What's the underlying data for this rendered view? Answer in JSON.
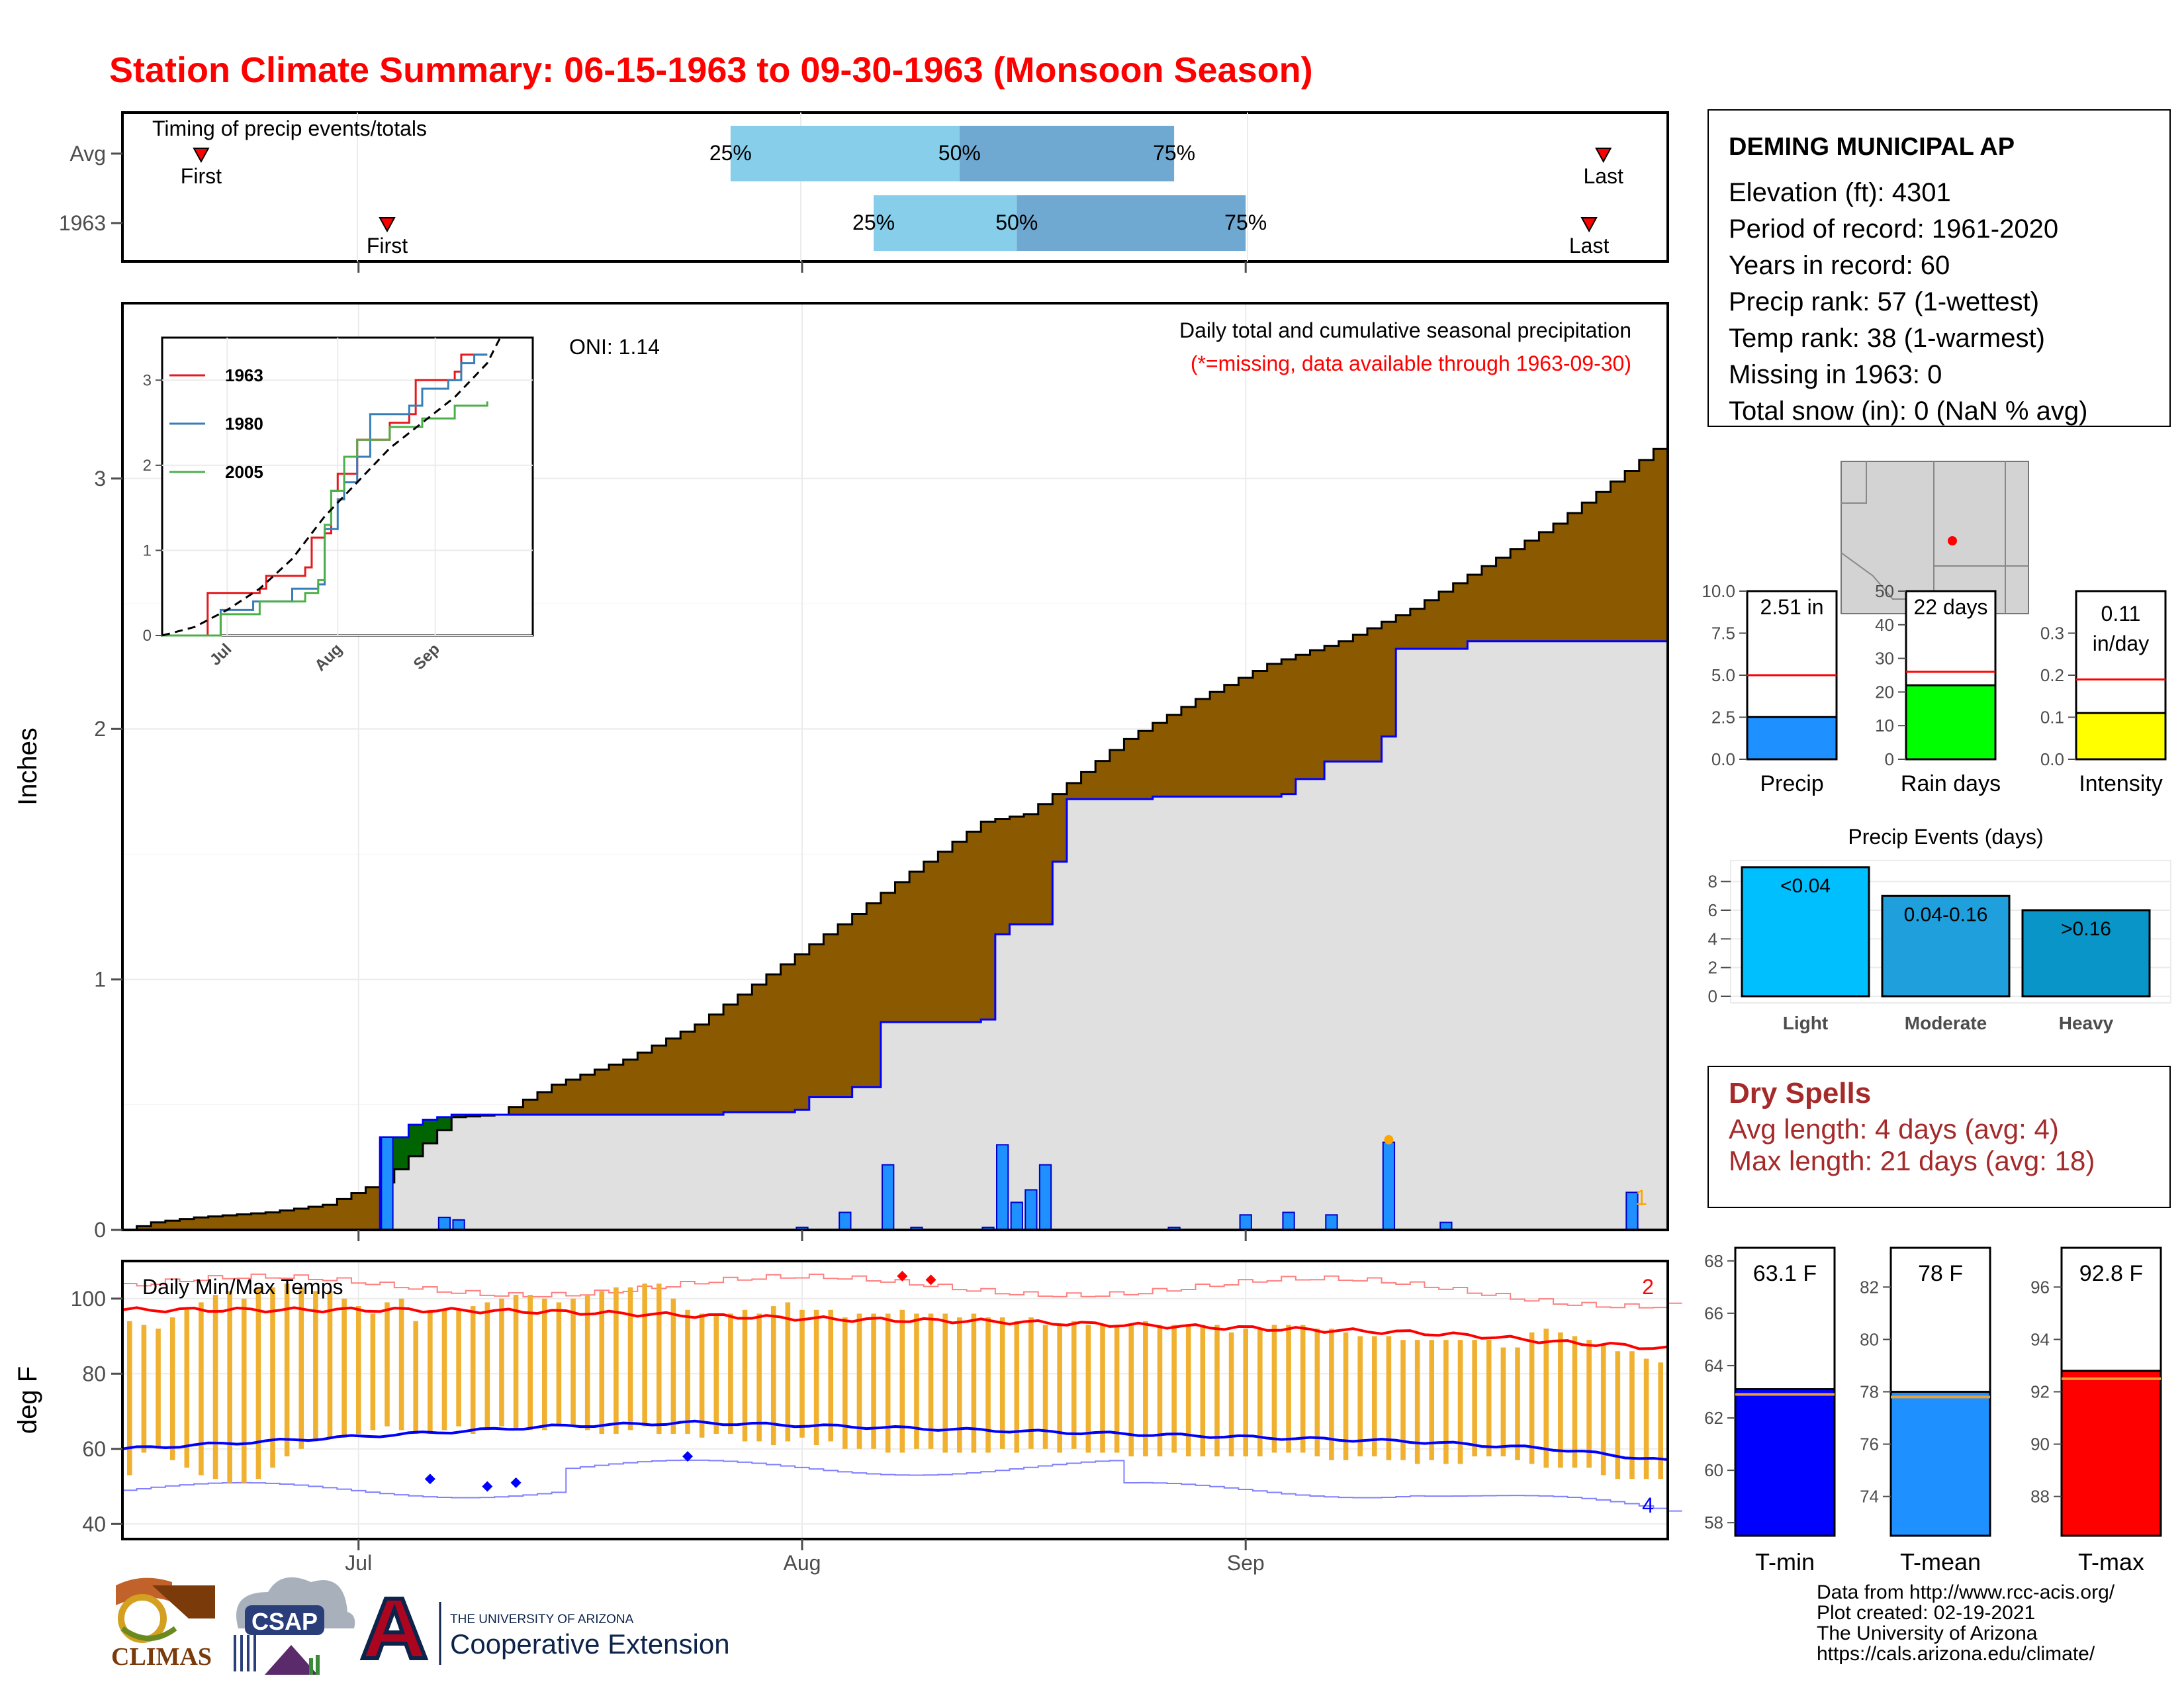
{
  "page": {
    "title": "Station Climate Summary: 06-15-1963 to 09-30-1963 (Monsoon Season)"
  },
  "station": {
    "name": "DEMING MUNICIPAL AP",
    "lines": [
      "Elevation (ft): 4301",
      "Period of record: 1961-2020",
      "Years in record: 60",
      "Precip rank: 57 (1-wettest)",
      "Temp rank: 38 (1-warmest)",
      "Missing in 1963: 0",
      "Total snow (in): 0 (NaN % avg)"
    ]
  },
  "timing": {
    "label": "Timing of precip events/totals",
    "rows": [
      "Avg",
      "1963"
    ],
    "first": "First",
    "last": "Last",
    "p25": "25%",
    "p50": "50%",
    "p75": "75%"
  },
  "precip_panel": {
    "note": "Daily total and cumulative seasonal precipitation",
    "missing_note": "(*=missing, data available through 1963-09-30)",
    "oni": "ONI: 1.14",
    "ylabel": "Inches",
    "corner": "1",
    "yticks": [
      "0",
      "1",
      "2",
      "3"
    ]
  },
  "inset": {
    "legend": [
      "1963",
      "1980",
      "2005"
    ],
    "yticks": [
      "0",
      "1",
      "2",
      "3"
    ],
    "xticks": [
      "Jul",
      "Aug",
      "Sep"
    ]
  },
  "temp_panel": {
    "label": "Daily Min/Max Temps",
    "ylabel": "deg F",
    "corner_top": "2",
    "corner_bottom": "4",
    "yticks": [
      "40",
      "60",
      "80",
      "100"
    ],
    "xticks": [
      "Jul",
      "Aug",
      "Sep"
    ]
  },
  "mini_bars": {
    "precip": {
      "label": "Precip",
      "value_text": "2.51 in",
      "yticks": [
        "0.0",
        "2.5",
        "5.0",
        "7.5",
        "10.0"
      ]
    },
    "raindays": {
      "label": "Rain days",
      "value_text": "22 days",
      "yticks": [
        "0",
        "10",
        "20",
        "30",
        "40",
        "50"
      ]
    },
    "intensity": {
      "label": "Intensity",
      "value_text_1": "0.11",
      "value_text_2": "in/day",
      "yticks": [
        "0.0",
        "0.1",
        "0.2",
        "0.3"
      ]
    }
  },
  "events": {
    "title": "Precip Events (days)",
    "yticks": [
      "0",
      "2",
      "4",
      "6",
      "8"
    ]
  },
  "dry_spells": {
    "title": "Dry Spells",
    "avg": "Avg length: 4 days (avg: 4)",
    "max": "Max length: 21 days (avg: 18)"
  },
  "temp_bars": {
    "tmin": {
      "label": "T-min",
      "value_text": "63.1 F",
      "yticks": [
        "58",
        "60",
        "62",
        "64",
        "66",
        "68"
      ]
    },
    "tmean": {
      "label": "T-mean",
      "value_text": "78 F",
      "yticks": [
        "74",
        "76",
        "78",
        "80",
        "82"
      ]
    },
    "tmax": {
      "label": "T-max",
      "value_text": "92.8 F",
      "yticks": [
        "88",
        "90",
        "92",
        "94",
        "96"
      ]
    }
  },
  "credits": [
    "Data from http://www.rcc-acis.org/",
    "Plot created: 02-19-2021",
    "The University of Arizona",
    "https://cals.arizona.edu/climate/"
  ],
  "logos": {
    "climas": "CLIMAS",
    "csap": "CSAP",
    "ua_small": "THE UNIVERSITY OF ARIZONA",
    "ua_big": "Cooperative Extension"
  },
  "colors": {
    "title": "#ff0000",
    "above_normal": "#006400",
    "below_normal": "#8b5a00",
    "observed_fill": "#e0e0e0",
    "daily_bar": "#1e90ff",
    "tmax_line": "#ff0000",
    "tmin_line": "#0000ff",
    "temp_bar": "#f0b030",
    "precip_bar": "#1e90ff",
    "raindays_bar": "#00ff00",
    "intensity_bar": "#ffff00",
    "tmin_bar": "#0000ff",
    "tmean_bar": "#1e90ff",
    "tmax_bar": "#ff0000",
    "dry_text": "#a52a2a"
  },
  "chart_data": [
    {
      "type": "bar",
      "name": "precip-timing",
      "x_range": [
        "1963-06-15",
        "1963-09-30"
      ],
      "series": [
        {
          "name": "Avg",
          "first": "1963-06-20",
          "p25": "1963-07-27",
          "p50": "1963-08-12",
          "p75": "1963-08-27",
          "last": "1963-09-26"
        },
        {
          "name": "1963",
          "first": "1963-07-03",
          "p25": "1963-08-06",
          "p50": "1963-08-16",
          "p75": "1963-09-01",
          "last": "1963-09-25"
        }
      ]
    },
    {
      "type": "area",
      "name": "cumulative-precip",
      "x_range": [
        "1963-06-15",
        "1963-09-30"
      ],
      "ylim": [
        0,
        3.7
      ],
      "avg_cumulative": [
        [
          0,
          0
        ],
        [
          2,
          0.03
        ],
        [
          5,
          0.05
        ],
        [
          10,
          0.07
        ],
        [
          14,
          0.1
        ],
        [
          17,
          0.17
        ],
        [
          18,
          0.19
        ],
        [
          23,
          0.45
        ],
        [
          26,
          0.46
        ],
        [
          30,
          0.58
        ],
        [
          35,
          0.68
        ],
        [
          40,
          0.82
        ],
        [
          45,
          1.02
        ],
        [
          50,
          1.22
        ],
        [
          55,
          1.43
        ],
        [
          60,
          1.63
        ],
        [
          63,
          1.66
        ],
        [
          65,
          1.74
        ],
        [
          70,
          1.96
        ],
        [
          75,
          2.12
        ],
        [
          80,
          2.26
        ],
        [
          85,
          2.35
        ],
        [
          90,
          2.48
        ],
        [
          95,
          2.65
        ],
        [
          100,
          2.82
        ],
        [
          105,
          3.03
        ],
        [
          110,
          3.25
        ],
        [
          115,
          3.39
        ],
        [
          118,
          3.42
        ]
      ],
      "observed_cumulative": [
        [
          0,
          0
        ],
        [
          17,
          0
        ],
        [
          18,
          0.37
        ],
        [
          19,
          0.37
        ],
        [
          20,
          0.42
        ],
        [
          21,
          0.44
        ],
        [
          22,
          0.45
        ],
        [
          23,
          0.46
        ],
        [
          42,
          0.47
        ],
        [
          47,
          0.48
        ],
        [
          48,
          0.53
        ],
        [
          51,
          0.57
        ],
        [
          53,
          0.83
        ],
        [
          60,
          0.84
        ],
        [
          61,
          1.18
        ],
        [
          62,
          1.22
        ],
        [
          65,
          1.47
        ],
        [
          66,
          1.72
        ],
        [
          72,
          1.73
        ],
        [
          81,
          1.74
        ],
        [
          82,
          1.8
        ],
        [
          84,
          1.87
        ],
        [
          88,
          1.97
        ],
        [
          89,
          2.32
        ],
        [
          94,
          2.35
        ],
        [
          110,
          2.51
        ],
        [
          118,
          2.51
        ]
      ],
      "daily_precip": [
        [
          18,
          0.37
        ],
        [
          22,
          0.05
        ],
        [
          23,
          0.04
        ],
        [
          47,
          0.01
        ],
        [
          50,
          0.07
        ],
        [
          53,
          0.26
        ],
        [
          55,
          0.01
        ],
        [
          60,
          0.01
        ],
        [
          61,
          0.34
        ],
        [
          62,
          0.11
        ],
        [
          63,
          0.16
        ],
        [
          64,
          0.26
        ],
        [
          73,
          0.01
        ],
        [
          78,
          0.06
        ],
        [
          81,
          0.07
        ],
        [
          84,
          0.06
        ],
        [
          88,
          0.35
        ],
        [
          92,
          0.03
        ],
        [
          105,
          0.15
        ]
      ],
      "missing": []
    },
    {
      "type": "line",
      "name": "inset-cumulative",
      "xticks": [
        "Jul",
        "Aug",
        "Sep"
      ],
      "ylim": [
        0,
        3.5
      ],
      "series": [
        {
          "name": "1963",
          "values": [
            [
              0,
              0
            ],
            [
              6,
              0
            ],
            [
              7,
              0.5
            ],
            [
              15,
              0.55
            ],
            [
              16,
              0.7
            ],
            [
              22,
              0.8
            ],
            [
              23,
              1.15
            ],
            [
              25,
              1.2
            ],
            [
              26,
              1.7
            ],
            [
              27,
              1.9
            ],
            [
              30,
              2.3
            ],
            [
              35,
              2.5
            ],
            [
              38,
              2.6
            ],
            [
              39,
              3.0
            ],
            [
              45,
              3.1
            ],
            [
              46,
              3.3
            ],
            [
              50,
              3.3
            ]
          ]
        },
        {
          "name": "1980",
          "values": [
            [
              0,
              0
            ],
            [
              8,
              0
            ],
            [
              9,
              0.3
            ],
            [
              14,
              0.4
            ],
            [
              20,
              0.55
            ],
            [
              24,
              0.6
            ],
            [
              25,
              1.25
            ],
            [
              27,
              1.6
            ],
            [
              28,
              1.8
            ],
            [
              30,
              2.1
            ],
            [
              32,
              2.6
            ],
            [
              38,
              2.7
            ],
            [
              40,
              2.9
            ],
            [
              44,
              3.0
            ],
            [
              46,
              3.2
            ],
            [
              48,
              3.3
            ],
            [
              50,
              3.3
            ]
          ]
        },
        {
          "name": "2005",
          "values": [
            [
              0,
              0
            ],
            [
              8,
              0
            ],
            [
              9,
              0.25
            ],
            [
              15,
              0.4
            ],
            [
              22,
              0.5
            ],
            [
              24,
              0.65
            ],
            [
              25,
              1.3
            ],
            [
              26,
              1.7
            ],
            [
              28,
              2.1
            ],
            [
              30,
              2.3
            ],
            [
              35,
              2.45
            ],
            [
              40,
              2.55
            ],
            [
              45,
              2.7
            ],
            [
              50,
              2.75
            ]
          ]
        },
        {
          "name": "avg",
          "values": [
            [
              0,
              0
            ],
            [
              5,
              0.1
            ],
            [
              10,
              0.3
            ],
            [
              15,
              0.55
            ],
            [
              20,
              0.9
            ],
            [
              25,
              1.4
            ],
            [
              30,
              1.8
            ],
            [
              35,
              2.2
            ],
            [
              40,
              2.5
            ],
            [
              45,
              2.8
            ],
            [
              50,
              3.2
            ],
            [
              52,
              3.5
            ]
          ]
        }
      ]
    },
    {
      "type": "line",
      "name": "daily-temps",
      "ylim": [
        36,
        110
      ],
      "tmax_avg": [
        [
          0,
          97
        ],
        [
          20,
          97
        ],
        [
          30,
          96.5
        ],
        [
          40,
          95.5
        ],
        [
          50,
          94.5
        ],
        [
          60,
          94
        ],
        [
          70,
          93
        ],
        [
          80,
          92
        ],
        [
          90,
          91
        ],
        [
          95,
          90
        ],
        [
          100,
          88.5
        ],
        [
          105,
          87.5
        ],
        [
          110,
          86
        ],
        [
          118,
          85
        ]
      ],
      "tmin_avg": [
        [
          0,
          60
        ],
        [
          10,
          62
        ],
        [
          20,
          64
        ],
        [
          30,
          66
        ],
        [
          40,
          67
        ],
        [
          50,
          66
        ],
        [
          60,
          65
        ],
        [
          70,
          64
        ],
        [
          80,
          63
        ],
        [
          90,
          62
        ],
        [
          100,
          60
        ],
        [
          110,
          56
        ],
        [
          118,
          53
        ]
      ],
      "daily_max": [
        94,
        93,
        92,
        95,
        97,
        99,
        101,
        102,
        100,
        103,
        103,
        104,
        103,
        102,
        102,
        100,
        98,
        96,
        99,
        100,
        94,
        97,
        97,
        97,
        98,
        99,
        100,
        101,
        101,
        100,
        99,
        100,
        101,
        102,
        103,
        103,
        104,
        104,
        100,
        97,
        96,
        96,
        96,
        97,
        96,
        98,
        99,
        97,
        97,
        97,
        95,
        96,
        96,
        96,
        97,
        96,
        96,
        96,
        95,
        96,
        95,
        95,
        94,
        95,
        93,
        93,
        94,
        93,
        93,
        93,
        93,
        94,
        93,
        93,
        93,
        93,
        93,
        91,
        92,
        92,
        93,
        93,
        93,
        92,
        92,
        91,
        90,
        90,
        90,
        89,
        89,
        89,
        89,
        89,
        89,
        89,
        87,
        87,
        91,
        92,
        91,
        90,
        89,
        88,
        86,
        86,
        84,
        83,
        84,
        83,
        85,
        80,
        79,
        78,
        77,
        84,
        81,
        84,
        85
      ],
      "daily_min": [
        53,
        59,
        60,
        57,
        55,
        53,
        52,
        51,
        51,
        52,
        55,
        58,
        60,
        62,
        63,
        63,
        64,
        65,
        66,
        65,
        64,
        64,
        65,
        66,
        64,
        65,
        66,
        65,
        65,
        65,
        66,
        66,
        65,
        64,
        64,
        65,
        66,
        64,
        64,
        64,
        63,
        64,
        64,
        62,
        62,
        61,
        62,
        63,
        61,
        62,
        60,
        60,
        60,
        59,
        59,
        60,
        60,
        59,
        59,
        59,
        59,
        60,
        59,
        60,
        60,
        59,
        60,
        59,
        59,
        59,
        58,
        58,
        58,
        59,
        58,
        58,
        58,
        58,
        58,
        58,
        59,
        59,
        59,
        58,
        57,
        57,
        58,
        58,
        57,
        57,
        56,
        57,
        56,
        56,
        58,
        58,
        58,
        57,
        56,
        55,
        55,
        55,
        55,
        53,
        52,
        52,
        52,
        52,
        52,
        52,
        52,
        52,
        52,
        51,
        52,
        51,
        51,
        57,
        56
      ],
      "record_max_markers": [
        [
          54,
          106
        ],
        [
          56,
          105
        ]
      ],
      "record_min_markers": [
        [
          21,
          52
        ],
        [
          25,
          50
        ],
        [
          27,
          51
        ],
        [
          39,
          58
        ]
      ]
    },
    {
      "type": "bar",
      "name": "season-totals",
      "categories": [
        "Precip",
        "Rain days",
        "Intensity"
      ],
      "values": [
        2.51,
        22,
        0.11
      ],
      "averages": [
        5.0,
        26,
        0.19
      ],
      "ylims": [
        [
          0,
          10
        ],
        [
          0,
          50
        ],
        [
          0,
          0.4
        ]
      ]
    },
    {
      "type": "bar",
      "name": "precip-events",
      "title": "Precip Events (days)",
      "categories": [
        "Light",
        "Moderate",
        "Heavy"
      ],
      "bin_labels": [
        "<0.04",
        "0.04-0.16",
        ">0.16"
      ],
      "values": [
        9,
        7,
        6
      ],
      "ylim": [
        0,
        9
      ]
    },
    {
      "type": "bar",
      "name": "seasonal-temps",
      "categories": [
        "T-min",
        "T-mean",
        "T-max"
      ],
      "values": [
        63.1,
        78,
        92.8
      ],
      "averages": [
        62.9,
        77.8,
        92.5
      ],
      "ylims": [
        [
          57.5,
          68.5
        ],
        [
          72.5,
          83.5
        ],
        [
          86.5,
          97.5
        ]
      ]
    }
  ]
}
